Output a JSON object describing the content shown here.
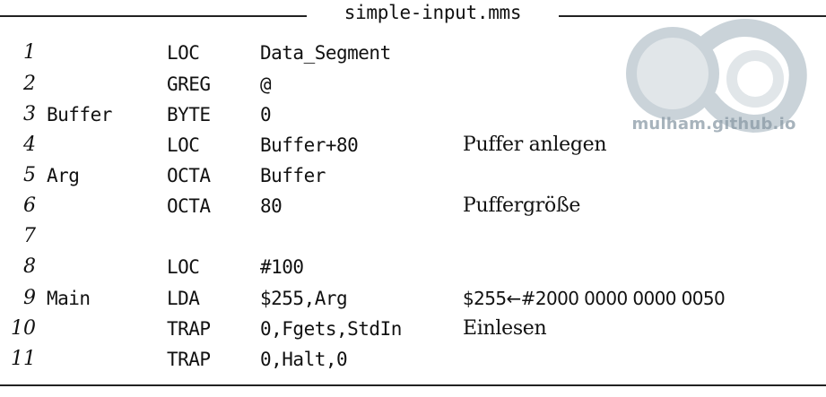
{
  "header": {
    "title": "simple-input.mms"
  },
  "watermark": {
    "text": "mulham.github.io",
    "logo": "infinity-logo"
  },
  "lines": [
    {
      "num": "1",
      "label": "",
      "op": "LOC",
      "arg": "Data_Segment",
      "comment": ""
    },
    {
      "num": "2",
      "label": "",
      "op": "GREG",
      "arg": "@",
      "comment": ""
    },
    {
      "num": "3",
      "label": "Buffer",
      "op": "BYTE",
      "arg": "0",
      "comment": ""
    },
    {
      "num": "4",
      "label": "",
      "op": "LOC",
      "arg": "Buffer+80",
      "comment": "Puffer anlegen"
    },
    {
      "num": "5",
      "label": "Arg",
      "op": "OCTA",
      "arg": "Buffer",
      "comment": ""
    },
    {
      "num": "6",
      "label": "",
      "op": "OCTA",
      "arg": "80",
      "comment": "Puffergröße"
    },
    {
      "num": "7",
      "label": "",
      "op": "",
      "arg": "",
      "comment": ""
    },
    {
      "num": "8",
      "label": "",
      "op": "LOC",
      "arg": "#100",
      "comment": ""
    },
    {
      "num": "9",
      "label": "Main",
      "op": "LDA",
      "arg": "$255,Arg",
      "comment": "$255←#2000 0000 0000 0050"
    },
    {
      "num": "10",
      "label": "",
      "op": "TRAP",
      "arg": "0,Fgets,StdIn",
      "comment": "Einlesen"
    },
    {
      "num": "11",
      "label": "",
      "op": "TRAP",
      "arg": "0,Halt,0",
      "comment": ""
    }
  ]
}
